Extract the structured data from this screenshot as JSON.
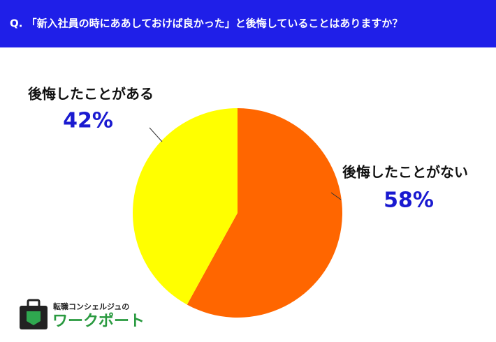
{
  "chart_data": {
    "type": "pie",
    "title": "Q. 「新入社員の時にああしておけば良かった」と後悔していることはありますか？",
    "categories": [
      "後悔したことがない",
      "後悔したことがある"
    ],
    "values": [
      58,
      42
    ],
    "value_labels": [
      "58%",
      "42%"
    ],
    "colors": [
      "#ff6600",
      "#ffff00"
    ]
  },
  "brand": {
    "tagline": "転職コンシェルジュの",
    "name": "ワークポート"
  }
}
